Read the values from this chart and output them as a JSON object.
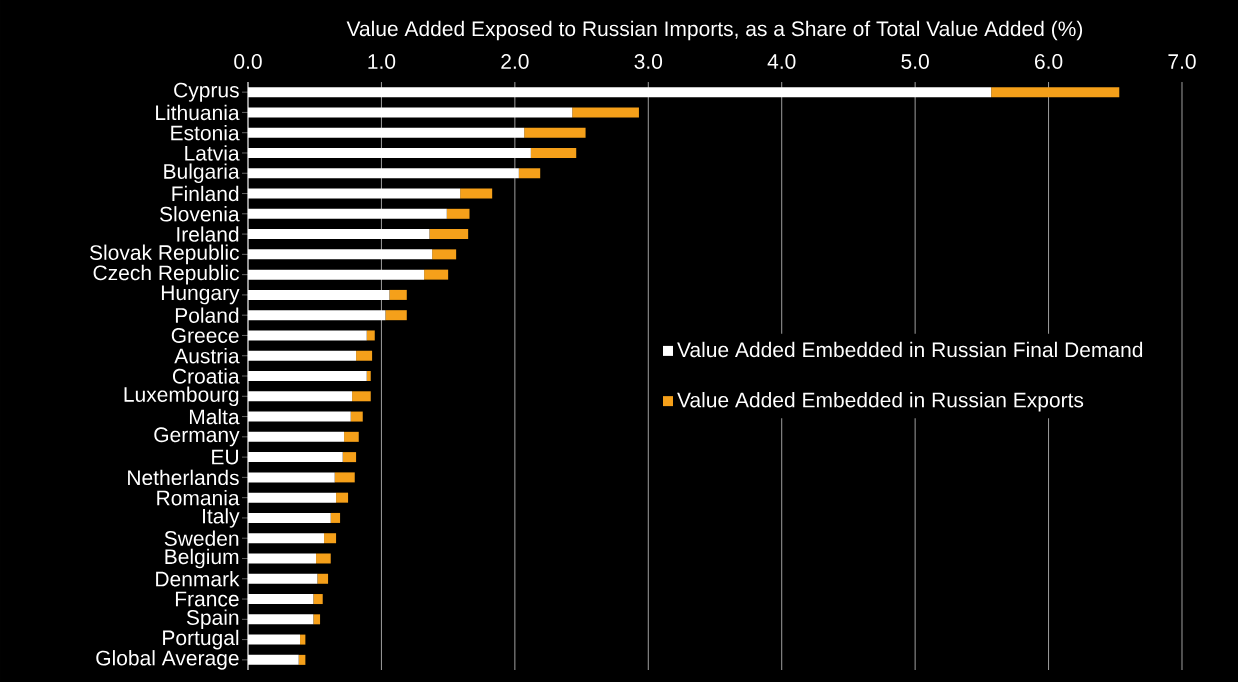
{
  "chart_data": {
    "type": "bar",
    "orientation": "horizontal",
    "stacked": true,
    "xlabel": "Value Added Exposed to Russian Imports, as a Share of Total Value Added (%)",
    "categories": [
      "Cyprus",
      "Lithuania",
      "Estonia",
      "Latvia",
      "Bulgaria",
      "Finland",
      "Slovenia",
      "Ireland",
      "Slovak Republic",
      "Czech Republic",
      "Hungary",
      "Poland",
      "Greece",
      "Austria",
      "Croatia",
      "Luxembourg",
      "Malta",
      "Germany",
      "EU",
      "Netherlands",
      "Romania",
      "Italy",
      "Sweden",
      "Belgium",
      "Denmark",
      "France",
      "Spain",
      "Portugal",
      "Global Average"
    ],
    "series": [
      {
        "name": "Value Added Embedded in Russian Final Demand",
        "color": "#ffffff",
        "values": [
          5.57,
          2.43,
          2.07,
          2.12,
          2.03,
          1.59,
          1.49,
          1.36,
          1.38,
          1.32,
          1.06,
          1.03,
          0.89,
          0.81,
          0.89,
          0.78,
          0.77,
          0.72,
          0.71,
          0.65,
          0.66,
          0.62,
          0.57,
          0.51,
          0.52,
          0.49,
          0.49,
          0.39,
          0.38
        ]
      },
      {
        "name": "Value Added Embedded in Russian Exports",
        "color": "#f5a01a",
        "values": [
          0.96,
          0.5,
          0.46,
          0.34,
          0.16,
          0.24,
          0.17,
          0.29,
          0.18,
          0.18,
          0.13,
          0.16,
          0.06,
          0.12,
          0.03,
          0.14,
          0.09,
          0.11,
          0.1,
          0.15,
          0.09,
          0.07,
          0.09,
          0.11,
          0.08,
          0.07,
          0.05,
          0.04,
          0.05
        ]
      }
    ],
    "xlim": [
      0,
      7
    ],
    "xticks": [
      {
        "value": 0,
        "label": "0.0"
      },
      {
        "value": 1,
        "label": "1.0"
      },
      {
        "value": 2,
        "label": "2.0"
      },
      {
        "value": 3,
        "label": "3.0"
      },
      {
        "value": 4,
        "label": "4.0"
      },
      {
        "value": 5,
        "label": "5.0"
      },
      {
        "value": 6,
        "label": "6.0"
      },
      {
        "value": 7,
        "label": "7.0"
      }
    ],
    "grid": "x",
    "legend": "right"
  }
}
